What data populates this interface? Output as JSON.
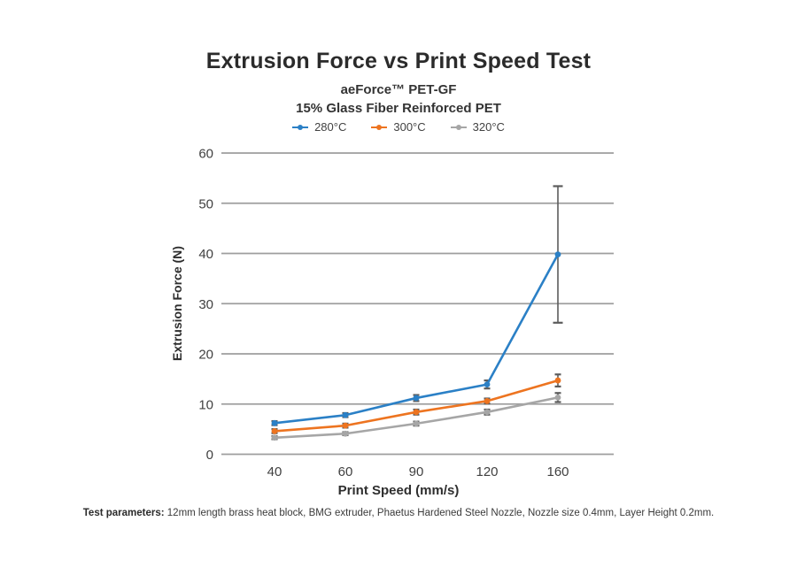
{
  "header": {
    "title": "Extrusion Force vs Print Speed Test",
    "subtitle_product": "aeForce™ PET-GF",
    "subtitle_material": "15% Glass Fiber Reinforced PET"
  },
  "chart_data": {
    "type": "line",
    "x": [
      40,
      60,
      90,
      120,
      160
    ],
    "xlabel": "Print Speed (mm/s)",
    "ylabel": "Extrusion Force (N)",
    "ylim": [
      0,
      60
    ],
    "yticks": [
      0,
      10,
      20,
      30,
      40,
      50,
      60
    ],
    "grid": "horizontal",
    "legend_position": "top",
    "marker": "circle",
    "error_bar_color": "#5c5c5c",
    "grid_color": "#9e9e9e",
    "series": [
      {
        "name": "280°C",
        "color": "#2b80c6",
        "values": [
          6.2,
          7.8,
          11.2,
          13.9,
          39.8
        ],
        "errors": [
          0.4,
          0.4,
          0.6,
          0.8,
          13.6
        ]
      },
      {
        "name": "300°C",
        "color": "#ed7420",
        "values": [
          4.6,
          5.7,
          8.4,
          10.6,
          14.7
        ],
        "errors": [
          0.4,
          0.4,
          0.5,
          0.5,
          1.2
        ]
      },
      {
        "name": "320°C",
        "color": "#a6a6a6",
        "values": [
          3.3,
          4.1,
          6.1,
          8.4,
          11.3
        ],
        "errors": [
          0.3,
          0.3,
          0.4,
          0.5,
          0.9
        ]
      }
    ]
  },
  "footer": {
    "label": "Test parameters:",
    "text": " 12mm length brass heat block, BMG extruder, Phaetus Hardened Steel Nozzle, Nozzle size 0.4mm, Layer Height 0.2mm."
  }
}
